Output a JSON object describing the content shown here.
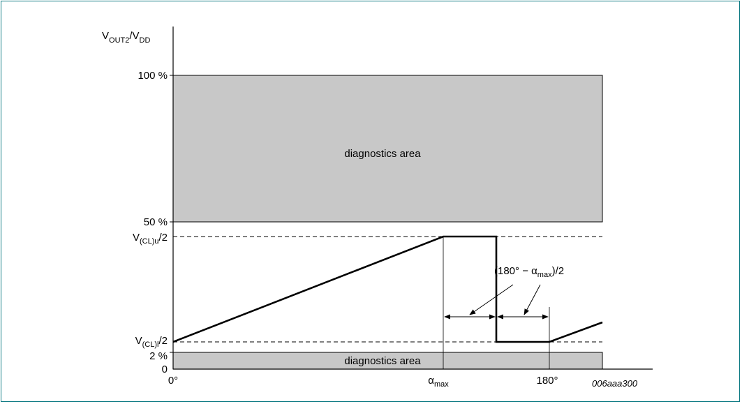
{
  "y_axis": {
    "title": "V",
    "title_sub1": "OUT2",
    "title_mid": "/V",
    "title_sub2": "DD",
    "labels": {
      "p100": "100 %",
      "p50": "50 %",
      "vclu_main": "V",
      "vclu_sub": "(CL)u",
      "vclu_tail": "/2",
      "vcll_main": "V",
      "vcll_sub": "(CL)l",
      "vcll_tail": "/2",
      "p2": "2 %",
      "p0": "0"
    }
  },
  "x_axis": {
    "labels": {
      "deg0": "0°",
      "alpha_main": "α",
      "alpha_sub": "max",
      "deg180": "180°"
    }
  },
  "areas": {
    "upper": "diagnostics area",
    "lower": "diagnostics area"
  },
  "annotation": {
    "main": "(180° − α",
    "sub": "max",
    "tail": ")/2"
  },
  "figure_id": "006aaa300",
  "colors": {
    "frame": "#0f7b84",
    "area_fill": "#c8c8c8",
    "line": "#000000"
  }
}
